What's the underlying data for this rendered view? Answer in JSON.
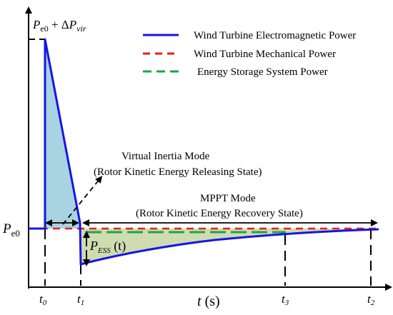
{
  "colors": {
    "electromagnetic": "#1515e6",
    "mechanical": "#ee1b1b",
    "ess": "#1aa64a",
    "fill_inertia": "#a9d3e1",
    "fill_recovery": "#cfdcb0"
  },
  "legend": [
    {
      "label": "Wind Turbine Electromagnetic Power",
      "style": "solid",
      "color_key": "electromagnetic"
    },
    {
      "label": "Wind Turbine Mechanical Power",
      "style": "dashed",
      "color_key": "mechanical"
    },
    {
      "label": "Energy Storage System Power",
      "style": "dashed",
      "color_key": "ess"
    }
  ],
  "axes": {
    "y_peak_label": {
      "p": "P",
      "sub": "e0",
      "rest": " + Δ",
      "p2": "P",
      "sub2": "vir"
    },
    "y_base_label": {
      "p": "P",
      "sub": "e0"
    },
    "x_label": {
      "t": "t",
      "unit": " (s)"
    },
    "x_ticks": [
      {
        "t": "t",
        "sub": "0"
      },
      {
        "t": "t",
        "sub": "1"
      },
      {
        "t": "t",
        "sub": "3"
      },
      {
        "t": "t",
        "sub": "2"
      }
    ]
  },
  "annotations": {
    "virtual_inertia": {
      "line1": "Virtual Inertia Mode",
      "line2": "(Rotor Kinetic Energy Releasing State)"
    },
    "mppt": {
      "line1": "MPPT Mode",
      "line2": "(Rotor Kinetic Energy Recovery State)"
    },
    "pess": {
      "p": "P",
      "sub": "ESS",
      "arg": " (t)"
    }
  }
}
